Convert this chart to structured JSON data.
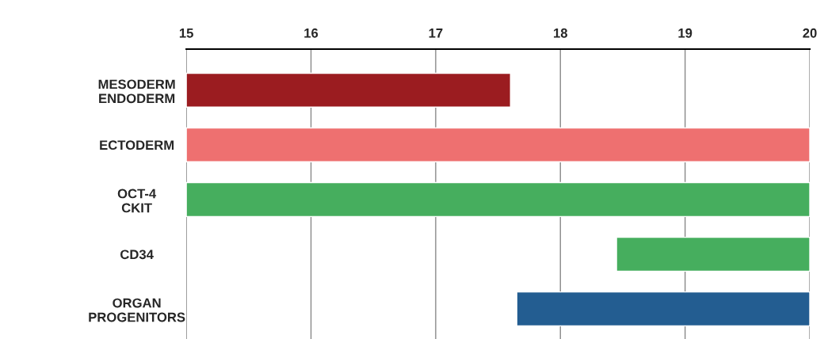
{
  "chart_data": {
    "type": "bar",
    "orientation": "horizontal",
    "categories": [
      "MESODERM\nENDODERM",
      "ECTODERM",
      "OCT-4\nCKIT",
      "CD34",
      "ORGAN\nPROGENITORS"
    ],
    "base": [
      15,
      15,
      15,
      18.45,
      17.65
    ],
    "values": [
      2.6,
      5,
      5,
      1.55,
      2.35
    ],
    "colors": [
      "#9b1c20",
      "#ee7070",
      "#46ae5e",
      "#46ae5e",
      "#235d91"
    ],
    "xlim": [
      15,
      20
    ],
    "xticks": [
      15,
      16,
      17,
      18,
      19,
      20
    ],
    "grid": "x"
  }
}
